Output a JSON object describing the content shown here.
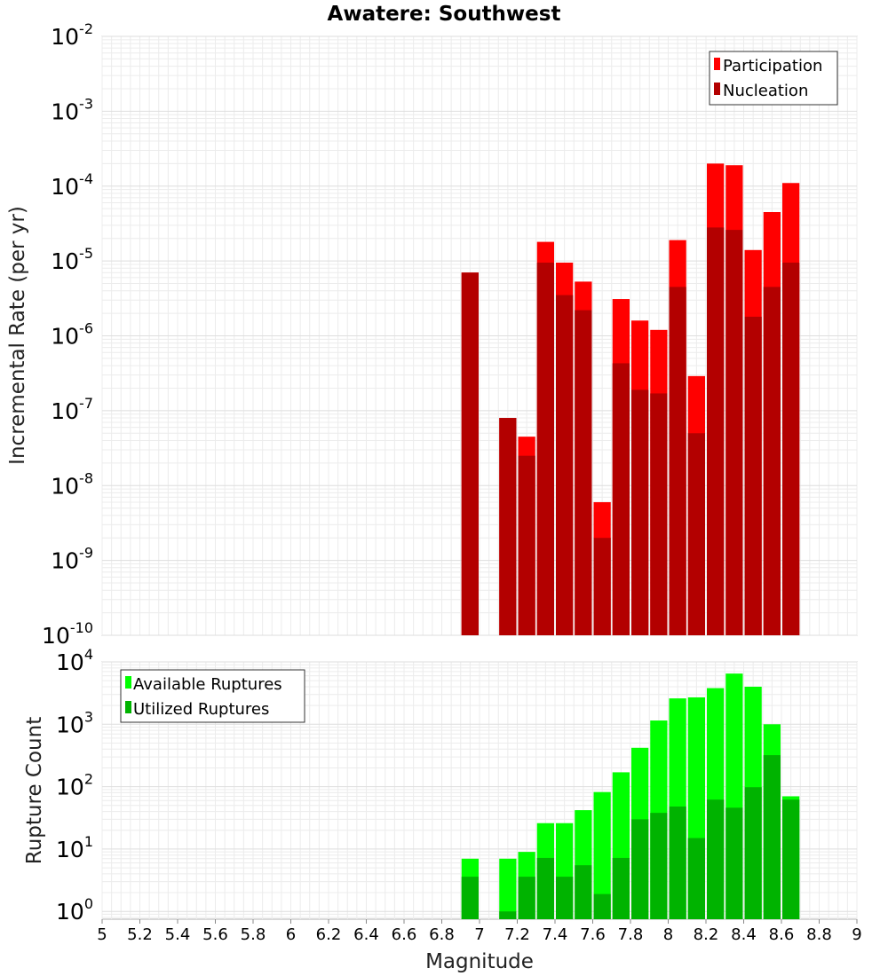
{
  "chart_data": [
    {
      "type": "bar",
      "panel": "rates",
      "title": "Awatere: Southwest",
      "ylabel": "Incremental Rate (per yr)",
      "xlabel": "",
      "log_y": true,
      "xlim": [
        5,
        9
      ],
      "ylim": [
        1e-10,
        0.01
      ],
      "y_tick_base": "10",
      "y_tick_exponents": [
        "-10",
        "-9",
        "-8",
        "-7",
        "-6",
        "-5",
        "-4",
        "-3",
        "-2"
      ],
      "grid": true,
      "legend_position": "top-right",
      "bin_width": 0.1,
      "series": [
        {
          "name": "Participation",
          "color": "#ff0000",
          "x": [
            6.95,
            7.15,
            7.25,
            7.35,
            7.45,
            7.55,
            7.65,
            7.75,
            7.85,
            7.95,
            8.05,
            8.15,
            8.25,
            8.35,
            8.45,
            8.55,
            8.65
          ],
          "values": [
            7e-06,
            8e-08,
            4.5e-08,
            1.8e-05,
            9.5e-06,
            5.3e-06,
            6e-09,
            3.1e-06,
            1.6e-06,
            1.2e-06,
            1.9e-05,
            2.9e-07,
            0.0002,
            0.00019,
            1.4e-05,
            4.5e-05,
            0.00011
          ]
        },
        {
          "name": "Nucleation",
          "color": "#b30000",
          "x": [
            6.95,
            7.15,
            7.25,
            7.35,
            7.45,
            7.55,
            7.65,
            7.75,
            7.85,
            7.95,
            8.05,
            8.15,
            8.25,
            8.35,
            8.45,
            8.55,
            8.65
          ],
          "values": [
            7e-06,
            8e-08,
            2.5e-08,
            9.5e-06,
            3.5e-06,
            2.2e-06,
            2e-09,
            4.3e-07,
            1.9e-07,
            1.7e-07,
            4.5e-06,
            5e-08,
            2.8e-05,
            2.6e-05,
            1.8e-06,
            4.5e-06,
            9.5e-06
          ]
        }
      ]
    },
    {
      "type": "bar",
      "panel": "counts",
      "title": "",
      "ylabel": "Rupture Count",
      "xlabel": "Magnitude",
      "log_y": true,
      "xlim": [
        5,
        9
      ],
      "ylim": [
        0.75,
        10000
      ],
      "y_tick_base": "10",
      "y_tick_exponents": [
        "0",
        "1",
        "2",
        "3",
        "4"
      ],
      "x_ticks": [
        "5",
        "5.2",
        "5.4",
        "5.6",
        "5.8",
        "6",
        "6.2",
        "6.4",
        "6.6",
        "6.8",
        "7",
        "7.2",
        "7.4",
        "7.6",
        "7.8",
        "8",
        "8.2",
        "8.4",
        "8.6",
        "8.8",
        "9"
      ],
      "grid": true,
      "legend_position": "top-left",
      "bin_width": 0.1,
      "series": [
        {
          "name": "Available Ruptures",
          "color": "#00ff00",
          "x": [
            6.95,
            7.15,
            7.25,
            7.35,
            7.45,
            7.55,
            7.65,
            7.75,
            7.85,
            7.95,
            8.05,
            8.15,
            8.25,
            8.35,
            8.45,
            8.55,
            8.65
          ],
          "values": [
            7,
            7,
            9,
            26,
            26,
            42,
            82,
            170,
            420,
            1150,
            2600,
            2700,
            3800,
            6500,
            4000,
            1000,
            70
          ]
        },
        {
          "name": "Utilized Ruptures",
          "color": "#00b300",
          "x": [
            6.95,
            7.15,
            7.25,
            7.35,
            7.45,
            7.55,
            7.65,
            7.75,
            7.85,
            7.95,
            8.05,
            8.15,
            8.25,
            8.35,
            8.45,
            8.55,
            8.65
          ],
          "values": [
            3.6,
            1,
            3.6,
            7.2,
            3.6,
            5.5,
            1.9,
            7.2,
            30,
            38,
            48,
            15,
            62,
            46,
            98,
            320,
            62
          ]
        }
      ]
    }
  ]
}
